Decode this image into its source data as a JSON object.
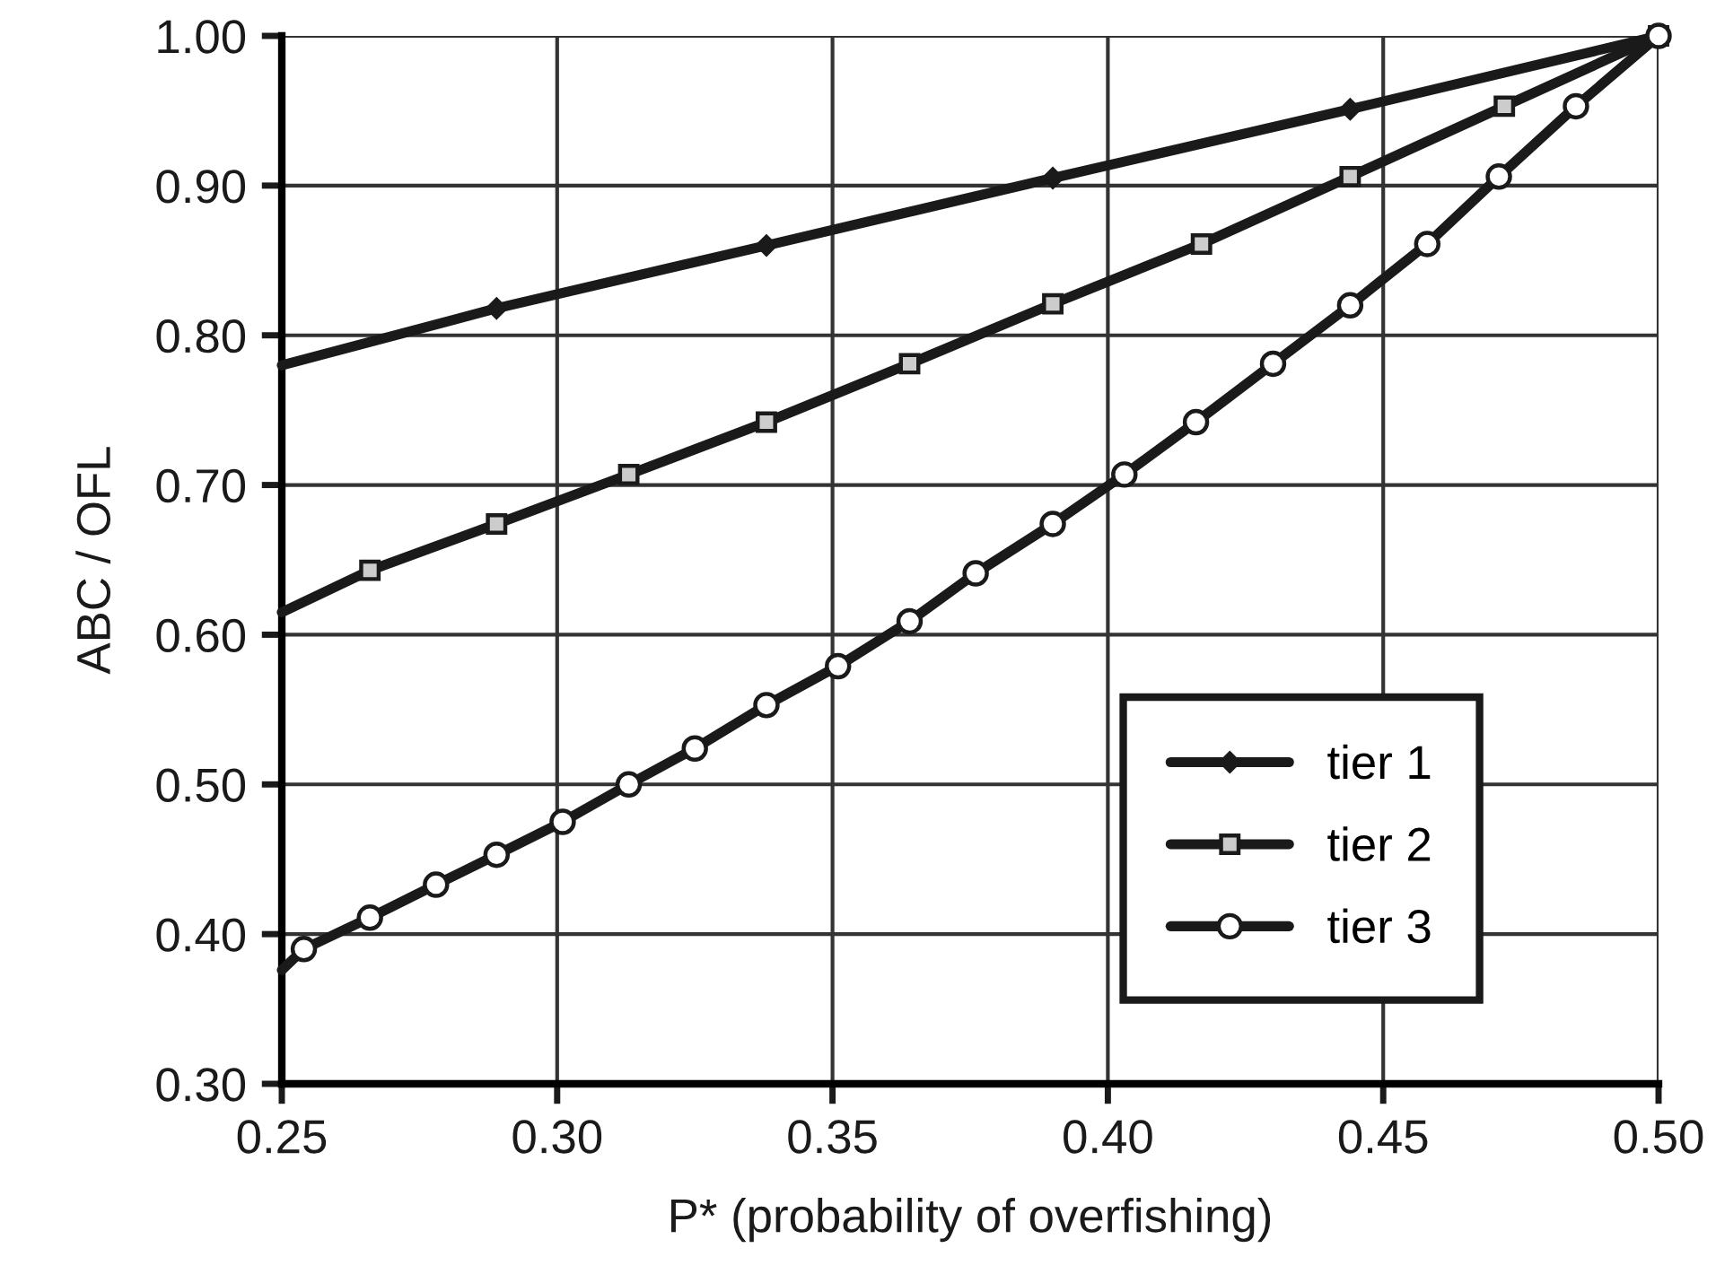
{
  "chart_data": {
    "type": "line",
    "xlabel": "P* (probability of overfishing)",
    "ylabel": "ABC / OFL",
    "xlim": [
      0.25,
      0.5
    ],
    "ylim": [
      0.3,
      1.0
    ],
    "xticks": [
      {
        "value": 0.25,
        "label": "0.25"
      },
      {
        "value": 0.3,
        "label": "0.30"
      },
      {
        "value": 0.35,
        "label": "0.35"
      },
      {
        "value": 0.4,
        "label": "0.40"
      },
      {
        "value": 0.45,
        "label": "0.45"
      },
      {
        "value": 0.5,
        "label": "0.50"
      }
    ],
    "yticks": [
      {
        "value": 0.3,
        "label": "0.30"
      },
      {
        "value": 0.4,
        "label": "0.40"
      },
      {
        "value": 0.5,
        "label": "0.50"
      },
      {
        "value": 0.6,
        "label": "0.60"
      },
      {
        "value": 0.7,
        "label": "0.70"
      },
      {
        "value": 0.8,
        "label": "0.80"
      },
      {
        "value": 0.9,
        "label": "0.90"
      },
      {
        "value": 1.0,
        "label": "1.00"
      }
    ],
    "grid": true,
    "legend": "lower right",
    "line_style": "solid",
    "series": [
      {
        "name": "tier 1",
        "color": "#1a1a1a",
        "marker": "diamond",
        "x": [
          0.25,
          0.289,
          0.338,
          0.39,
          0.444,
          0.5
        ],
        "values": [
          0.78,
          0.818,
          0.86,
          0.905,
          0.951,
          1.0
        ]
      },
      {
        "name": "tier 2",
        "color": "#1a1a1a",
        "marker": "square",
        "x": [
          0.25,
          0.266,
          0.289,
          0.313,
          0.338,
          0.364,
          0.39,
          0.417,
          0.444,
          0.472,
          0.5
        ],
        "values": [
          0.615,
          0.643,
          0.674,
          0.707,
          0.742,
          0.781,
          0.821,
          0.861,
          0.906,
          0.953,
          1.0
        ]
      },
      {
        "name": "tier 3",
        "color": "#1a1a1a",
        "marker": "circle",
        "x": [
          0.25,
          0.254,
          0.266,
          0.278,
          0.289,
          0.301,
          0.313,
          0.325,
          0.338,
          0.351,
          0.364,
          0.376,
          0.39,
          0.403,
          0.416,
          0.43,
          0.444,
          0.458,
          0.471,
          0.485,
          0.5
        ],
        "values": [
          0.376,
          0.39,
          0.411,
          0.433,
          0.453,
          0.475,
          0.5,
          0.524,
          0.553,
          0.579,
          0.609,
          0.641,
          0.674,
          0.707,
          0.742,
          0.781,
          0.82,
          0.861,
          0.906,
          0.953,
          1.0
        ]
      }
    ]
  }
}
